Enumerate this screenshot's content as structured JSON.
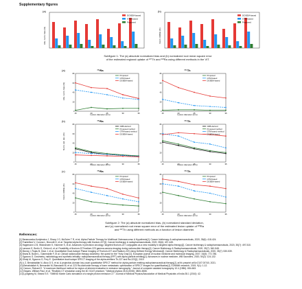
{
  "page": {
    "title": "Supplementary figures"
  },
  "figure1": {
    "caption": "Subfigure 1: The (a) absolute normalized bias and (b) normalized root mean square error of the estimated regional uptake of ²²⁷Th and ²²³Ra using different methods in the VIT.",
    "panels": [
      {
        "label": "(a)",
        "ylabel": "Abs. norm. bias (%)"
      },
      {
        "label": "(b)",
        "ylabel": "Norm. RMSE (%)"
      }
    ],
    "legend": [
      "DOSEM-based",
      "GTM-based",
      "Proposed"
    ],
    "colors": [
      "#e53935",
      "#2196f3",
      "#2e7d32"
    ]
  },
  "figure2": {
    "caption": "Subfigure 2: The (a) absolute normalized bias, (b) normalized standard deviation, and (c) normalized root mean square error of the estimated lesion uptake of ²²³Ra and ²²⁷Th using different methods as a function of lesion diameter.",
    "xlabel": "Lesion diameter (mm)",
    "rows": [
      {
        "row": "(a)",
        "ylabel": "Abs. norm. bias (%)",
        "left_title": "²²³Ra",
        "right_title": "²²⁷Th"
      },
      {
        "row": "(b)",
        "ylabel": "Norm. std. dev. (%)",
        "left_title": "²²³Ra",
        "right_title": "²²⁷Th"
      },
      {
        "row": "(c)",
        "ylabel": "Norm. RMSE (%)",
        "left_title": "²²³Ra",
        "right_title": "²²⁷Th"
      }
    ],
    "legend_abias": [
      "Proposed",
      "GTM-based",
      "DOSEM-based"
    ],
    "legend_std": [
      "CRB-derived",
      "Proposed method",
      "GTM-based method",
      "DOSEM-based"
    ],
    "legend_rmse": [
      "Proposed",
      "GTM-based",
      "DOSEM-based"
    ]
  },
  "chart_data": [
    {
      "type": "line",
      "panel": "(a) ²²³Ra",
      "x": [
        15,
        20,
        25,
        30,
        35
      ],
      "xlabel": "Lesion diameter (mm)",
      "ylabel": "Abs. norm. bias (%)",
      "ylim": [
        0,
        80
      ],
      "series": [
        {
          "name": "Proposed",
          "values": [
            2,
            8,
            5,
            6,
            6
          ]
        },
        {
          "name": "GTM-based",
          "values": [
            45,
            40,
            35,
            28,
            25
          ]
        },
        {
          "name": "DOSEM-based",
          "values": [
            60,
            50,
            48,
            35,
            27
          ]
        }
      ]
    },
    {
      "type": "line",
      "panel": "(a) ²²⁷Th",
      "x": [
        15,
        20,
        25,
        30,
        35
      ],
      "xlabel": "Lesion diameter (mm)",
      "ylabel": "Abs. norm. bias (%)",
      "ylim": [
        0,
        80
      ],
      "series": [
        {
          "name": "Proposed",
          "values": [
            2,
            3,
            3,
            2,
            2
          ]
        },
        {
          "name": "GTM-based",
          "values": [
            25,
            18,
            12,
            10,
            8
          ]
        },
        {
          "name": "DOSEM-based",
          "values": [
            65,
            50,
            40,
            32,
            28
          ]
        }
      ]
    },
    {
      "type": "line",
      "panel": "(b) ²²³Ra",
      "x": [
        15,
        20,
        25,
        30,
        35
      ],
      "xlabel": "Lesion diameter (mm)",
      "ylabel": "Norm. std. dev. (%)",
      "ylim": [
        0,
        80
      ],
      "series": [
        {
          "name": "CRB-derived",
          "values": [
            28,
            20,
            16,
            14,
            12
          ]
        },
        {
          "name": "Proposed method",
          "values": [
            30,
            22,
            18,
            15,
            13
          ]
        },
        {
          "name": "GTM-based method",
          "values": [
            20,
            18,
            16,
            14,
            12
          ]
        },
        {
          "name": "DOSEM-based",
          "values": [
            15,
            14,
            13,
            12,
            11
          ]
        }
      ]
    },
    {
      "type": "line",
      "panel": "(b) ²²⁷Th",
      "x": [
        15,
        20,
        25,
        30,
        35
      ],
      "xlabel": "Lesion diameter (mm)",
      "ylabel": "Norm. std. dev. (%)",
      "ylim": [
        0,
        80
      ],
      "series": [
        {
          "name": "CRB-derived",
          "values": [
            42,
            35,
            28,
            22,
            18
          ]
        },
        {
          "name": "Proposed method",
          "values": [
            45,
            38,
            30,
            24,
            20
          ]
        },
        {
          "name": "GTM-based method",
          "values": [
            60,
            55,
            42,
            38,
            30
          ]
        },
        {
          "name": "DOSEM-based",
          "values": [
            58,
            62,
            60,
            58,
            55
          ]
        }
      ]
    },
    {
      "type": "line",
      "panel": "(c) ²²³Ra",
      "x": [
        15,
        20,
        25,
        30,
        35
      ],
      "xlabel": "Lesion diameter (mm)",
      "ylabel": "Norm. RMSE (%)",
      "ylim": [
        0,
        80
      ],
      "series": [
        {
          "name": "Proposed",
          "values": [
            30,
            22,
            18,
            15,
            13
          ]
        },
        {
          "name": "GTM-based",
          "values": [
            50,
            42,
            35,
            28,
            22
          ]
        },
        {
          "name": "DOSEM-based",
          "values": [
            62,
            55,
            50,
            38,
            30
          ]
        }
      ]
    },
    {
      "type": "line",
      "panel": "(c) ²²⁷Th",
      "x": [
        15,
        20,
        25,
        30,
        35
      ],
      "xlabel": "Lesion diameter (mm)",
      "ylabel": "Norm. RMSE (%)",
      "ylim": [
        0,
        80
      ],
      "series": [
        {
          "name": "Proposed",
          "values": [
            42,
            35,
            28,
            22,
            18
          ]
        },
        {
          "name": "GTM-based",
          "values": [
            60,
            55,
            45,
            40,
            32
          ]
        },
        {
          "name": "DOSEM-based",
          "values": [
            70,
            65,
            58,
            55,
            50
          ]
        }
      ]
    }
  ],
  "references": {
    "title": "References:",
    "items": [
      "[1] Baranowska-Kortylewicz J, Sharp J G, McGuire T R, et al. Alpha-Particle Therapy for Multifocal Osteosarcoma: A Hypothesis[J]. Cancer biotherapy & radiopharmaceuticals, 2020, 35(6): 418-424.",
      "[2] Frantellizzi V, Cosma L, Brunotti G, et al. Targeted alpha therapy with thorium-227[J]. Cancer biotherapy & radiopharmaceuticals, 2020, 35(6): 437-445.",
      "[3] Hagemann U B, Wickstroem K, Hammer S, et al. Advances in precision oncology: targeted thorium-227 conjugates as a new modality in targeted alpha therapy[J]. Cancer biotherapy & radiopharmaceuticals, 2020, 35(7): 497-510.",
      "[4] Larsson E, Brolin G, Cleton A, et al. Feasibility of thorium-227/radium-223 gamma-camera imaging during radionuclide therapy[J]. Cancer Biotherapy & Radiopharmaceuticals, 2020, 35(7): 540-548.",
      "[5] Murray I, Rojas B, Gear J, et al. Quantitative Dual-Isotope Planar Imaging of Thorium-227 and Radium-223 Using Defined Energy Windows[J]. Cancer Biotherapy & Radiopharmaceuticals, 2020, 35(7): 530-539.",
      "[6] Brans B, Bodei L, Giammarile F, et al. Clinical radionuclide therapy dosimetry: the quest for the \"Holy Gray\"[J]. European journal of nuclear medicine and molecular imaging, 2007, 34(5): 772-786.",
      "[7] Sgouros G. Dosimetry, radiobiology and synthetic lethality: radiopharmaceutical therapy (RPT) with alpha-particle-emitting[J]. Advances in nuclear medicine, WB Saunders, 2020, 50(2): 124-132.",
      "[8] Ghaly M, Sgouros G, Frey E. Quantitative dual isotope SPECT imaging of the alpha-emitters Th-227 and Ra-223[J]. 2019.",
      "[9] Li Z, Benabdallah N, Abou D S, et al. A projection-domain low-count quantitative SPECT method for alpha-particle emitting radiopharmaceutical therapy[J]. arXiv preprint arXiv:2107.00740, 2021.",
      "[10] Benabdallah N, Bernardini M, Bianciardi M, et al. 223 Ra-dichloride therapy of bone metastasis: optimization of SPECT images for quantification[J]. EJNMMI research, 2019, 9(1): 1-12.",
      "[11] Carson, Richard E. \"A maximum likelihood method for region-of-interest evaluation in emission tomography.\" Journal of computer assisted tomography 10.4 (1986): 654-663.",
      "[12] Segars, William Paul, et al. \"Realistic CT simulation using the 4D XCAT phantom.\" Medical physics 35.8 (2008): 3800-3808.",
      "[13] Ljungberg M, Strand S E. \"SIMIND Monte Carlo simulation of a single photon emission CT.\" Journal of Medical Physics/Association of Medical Physicists of India 35.1 (2010): 42."
    ]
  }
}
